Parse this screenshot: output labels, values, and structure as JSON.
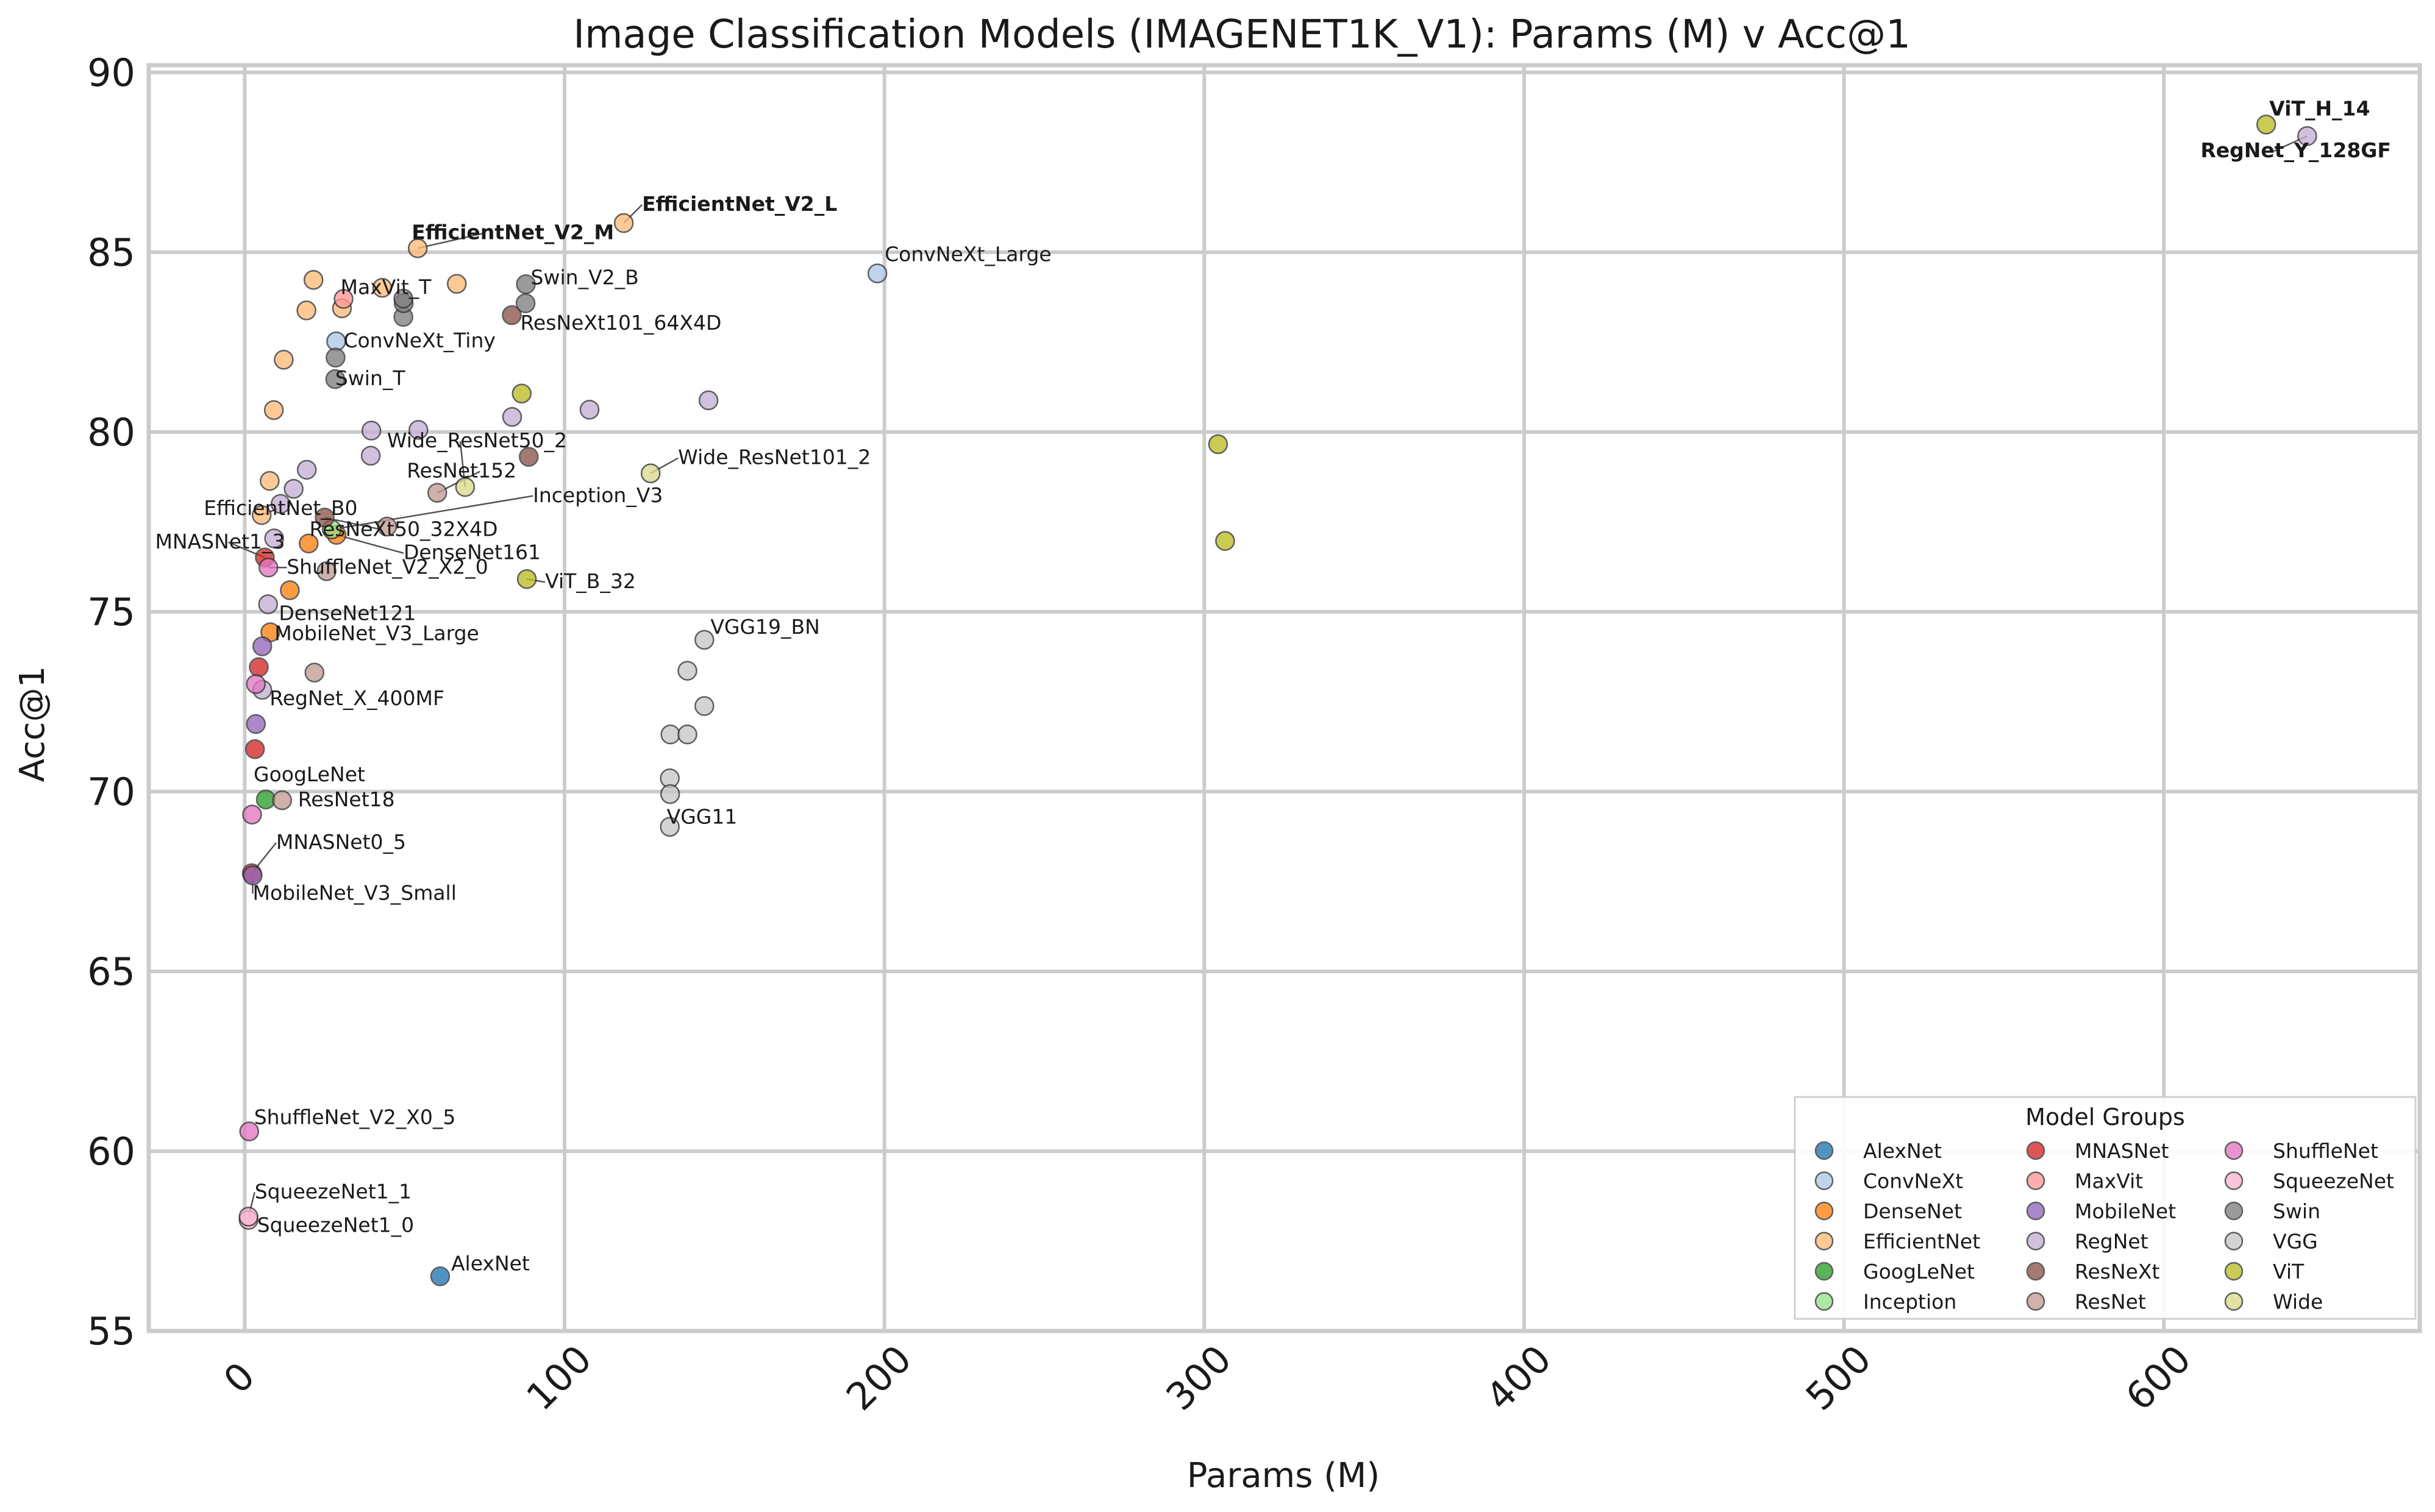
{
  "chart_data": {
    "type": "scatter",
    "title": "Image Classification Models (IMAGENET1K_V1): Params (M) v Acc@1",
    "xlabel": "Params (M)",
    "ylabel": "Acc@1",
    "xlim": [
      -30,
      680
    ],
    "ylim": [
      55,
      90.2
    ],
    "xticks": [
      0,
      100,
      200,
      300,
      400,
      500,
      600
    ],
    "yticks": [
      55,
      60,
      65,
      70,
      75,
      80,
      85,
      90
    ],
    "grid": true,
    "legend": {
      "title": "Model Groups",
      "placement": "bottom-right",
      "columns": 3
    },
    "series": [
      {
        "name": "AlexNet",
        "color": "#1f77b4",
        "points": [
          {
            "x": 61.1,
            "y": 56.52,
            "label": "AlexNet"
          }
        ]
      },
      {
        "name": "ConvNeXt",
        "color": "#aec7e8",
        "points": [
          {
            "x": 28.6,
            "y": 82.52,
            "label": "ConvNeXt_Tiny"
          },
          {
            "x": 197.8,
            "y": 84.41,
            "label": "ConvNeXt_Large"
          }
        ]
      },
      {
        "name": "DenseNet",
        "color": "#ff7f0e",
        "points": [
          {
            "x": 8.0,
            "y": 74.43,
            "label": "DenseNet121"
          },
          {
            "x": 28.7,
            "y": 77.14,
            "label": "DenseNet161"
          },
          {
            "x": 14.1,
            "y": 75.6
          },
          {
            "x": 20.0,
            "y": 76.9
          }
        ]
      },
      {
        "name": "EfficientNet",
        "color": "#ffbb78",
        "points": [
          {
            "x": 5.3,
            "y": 77.69,
            "label": "EfficientNet_B0"
          },
          {
            "x": 7.8,
            "y": 78.64
          },
          {
            "x": 9.1,
            "y": 80.61
          },
          {
            "x": 12.2,
            "y": 82.01
          },
          {
            "x": 19.3,
            "y": 83.38
          },
          {
            "x": 30.4,
            "y": 83.44
          },
          {
            "x": 43.0,
            "y": 84.01
          },
          {
            "x": 66.3,
            "y": 84.12
          },
          {
            "x": 21.5,
            "y": 84.23
          },
          {
            "x": 54.1,
            "y": 85.11,
            "label": "EfficientNet_V2_M",
            "bold": true
          },
          {
            "x": 118.5,
            "y": 85.81,
            "label": "EfficientNet_V2_L",
            "bold": true
          }
        ]
      },
      {
        "name": "GoogLeNet",
        "color": "#2ca02c",
        "points": [
          {
            "x": 6.6,
            "y": 69.78,
            "label": "GoogLeNet"
          }
        ]
      },
      {
        "name": "Inception",
        "color": "#98df8a",
        "points": [
          {
            "x": 27.2,
            "y": 77.29,
            "label": "Inception_V3"
          }
        ]
      },
      {
        "name": "MNASNet",
        "color": "#d62728",
        "points": [
          {
            "x": 2.2,
            "y": 67.73,
            "label": "MNASNet0_5"
          },
          {
            "x": 3.2,
            "y": 71.18
          },
          {
            "x": 4.4,
            "y": 73.46
          },
          {
            "x": 6.3,
            "y": 76.51,
            "label": "MNASNet1_3"
          }
        ]
      },
      {
        "name": "MaxVit",
        "color": "#ff9896",
        "points": [
          {
            "x": 30.9,
            "y": 83.7,
            "label": "MaxVit_T"
          }
        ]
      },
      {
        "name": "MobileNet",
        "color": "#9467bd",
        "points": [
          {
            "x": 2.5,
            "y": 67.67,
            "label": "MobileNet_V3_Small"
          },
          {
            "x": 3.5,
            "y": 71.88
          },
          {
            "x": 5.5,
            "y": 74.04,
            "label": "MobileNet_V3_Large"
          }
        ]
      },
      {
        "name": "RegNet",
        "color": "#c5b0d5",
        "points": [
          {
            "x": 5.5,
            "y": 72.83,
            "label": "RegNet_X_400MF"
          },
          {
            "x": 7.3,
            "y": 75.21
          },
          {
            "x": 9.2,
            "y": 77.04
          },
          {
            "x": 11.2,
            "y": 78.0
          },
          {
            "x": 15.3,
            "y": 78.42
          },
          {
            "x": 19.4,
            "y": 78.95
          },
          {
            "x": 39.6,
            "y": 80.04
          },
          {
            "x": 39.4,
            "y": 79.34
          },
          {
            "x": 54.3,
            "y": 80.06
          },
          {
            "x": 83.6,
            "y": 80.42
          },
          {
            "x": 107.8,
            "y": 80.62
          },
          {
            "x": 145.0,
            "y": 80.88
          },
          {
            "x": 644.8,
            "y": 88.23,
            "label": "RegNet_Y_128GF",
            "bold": true
          }
        ]
      },
      {
        "name": "ResNeXt",
        "color": "#8c564b",
        "points": [
          {
            "x": 25.0,
            "y": 77.62,
            "label": "ResNeXt50_32X4D"
          },
          {
            "x": 88.8,
            "y": 79.31
          },
          {
            "x": 83.5,
            "y": 83.25,
            "label": "ResNeXt101_64X4D"
          }
        ]
      },
      {
        "name": "ResNet",
        "color": "#c49c94",
        "points": [
          {
            "x": 11.7,
            "y": 69.76,
            "label": "ResNet18"
          },
          {
            "x": 21.8,
            "y": 73.31
          },
          {
            "x": 25.6,
            "y": 76.13
          },
          {
            "x": 44.5,
            "y": 77.37
          },
          {
            "x": 60.2,
            "y": 78.31,
            "label": "ResNet152"
          }
        ]
      },
      {
        "name": "ShuffleNet",
        "color": "#e377c2",
        "points": [
          {
            "x": 1.4,
            "y": 60.55,
            "label": "ShuffleNet_V2_X0_5"
          },
          {
            "x": 2.3,
            "y": 69.36
          },
          {
            "x": 3.5,
            "y": 72.99
          },
          {
            "x": 7.4,
            "y": 76.23,
            "label": "ShuffleNet_V2_X2_0"
          }
        ]
      },
      {
        "name": "SqueezeNet",
        "color": "#f7b6d2",
        "points": [
          {
            "x": 1.2,
            "y": 58.09,
            "label": "SqueezeNet1_0"
          },
          {
            "x": 1.2,
            "y": 58.18,
            "label": "SqueezeNet1_1"
          }
        ]
      },
      {
        "name": "Swin",
        "color": "#7f7f7f",
        "points": [
          {
            "x": 28.3,
            "y": 81.47,
            "label": "Swin_T"
          },
          {
            "x": 28.4,
            "y": 82.07
          },
          {
            "x": 49.6,
            "y": 83.2
          },
          {
            "x": 49.7,
            "y": 83.58
          },
          {
            "x": 87.8,
            "y": 83.58
          },
          {
            "x": 87.9,
            "y": 84.11,
            "label": "Swin_V2_B"
          },
          {
            "x": 49.6,
            "y": 83.71
          }
        ]
      },
      {
        "name": "VGG",
        "color": "#c7c7c7",
        "points": [
          {
            "x": 132.9,
            "y": 69.02,
            "label": "VGG11"
          },
          {
            "x": 132.9,
            "y": 70.37
          },
          {
            "x": 133.0,
            "y": 69.93
          },
          {
            "x": 133.1,
            "y": 71.59
          },
          {
            "x": 138.4,
            "y": 71.59
          },
          {
            "x": 138.4,
            "y": 73.36
          },
          {
            "x": 143.7,
            "y": 72.38
          },
          {
            "x": 143.7,
            "y": 74.22,
            "label": "VGG19_BN"
          }
        ]
      },
      {
        "name": "ViT",
        "color": "#bcbd22",
        "points": [
          {
            "x": 86.6,
            "y": 81.07
          },
          {
            "x": 88.2,
            "y": 75.91,
            "label": "ViT_B_32"
          },
          {
            "x": 304.3,
            "y": 79.66
          },
          {
            "x": 306.5,
            "y": 76.97
          },
          {
            "x": 632.0,
            "y": 88.55,
            "label": "ViT_H_14",
            "bold": true
          }
        ]
      },
      {
        "name": "Wide",
        "color": "#dbdb8d",
        "points": [
          {
            "x": 68.9,
            "y": 78.47,
            "label": "Wide_ResNet50_2"
          },
          {
            "x": 126.9,
            "y": 78.85,
            "label": "Wide_ResNet101_2"
          }
        ]
      }
    ]
  }
}
